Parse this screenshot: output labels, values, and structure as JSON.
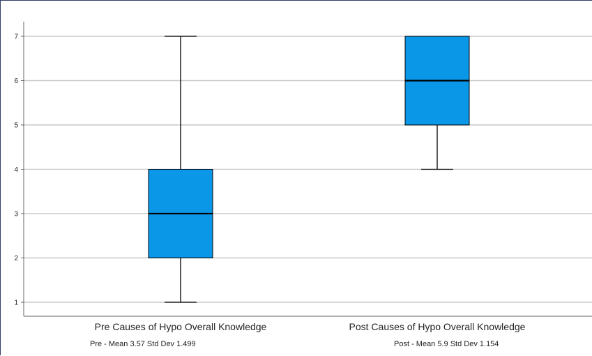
{
  "chart_data": {
    "type": "boxplot",
    "title": "",
    "xlabel": "",
    "ylabel": "",
    "ylim": [
      0.7,
      7.3
    ],
    "yticks": [
      1,
      2,
      3,
      4,
      5,
      6,
      7
    ],
    "grid": true,
    "box_color": "#0b97e8",
    "categories": [
      "Pre Causes of Hypo Overall Knowledge",
      "Post Causes of Hypo Overall Knowledge"
    ],
    "boxes": [
      {
        "category": "Pre Causes of Hypo Overall Knowledge",
        "min": 1,
        "q1": 2,
        "median": 3,
        "q3": 4,
        "max": 7
      },
      {
        "category": "Post Causes of Hypo Overall Knowledge",
        "min": 4,
        "q1": 5,
        "median": 6,
        "q3": 7,
        "max": 7
      }
    ],
    "annotations": [
      "Pre - Mean 3.57 Std Dev 1.499",
      "Post - Mean 5.9 Std Dev 1.154"
    ]
  }
}
